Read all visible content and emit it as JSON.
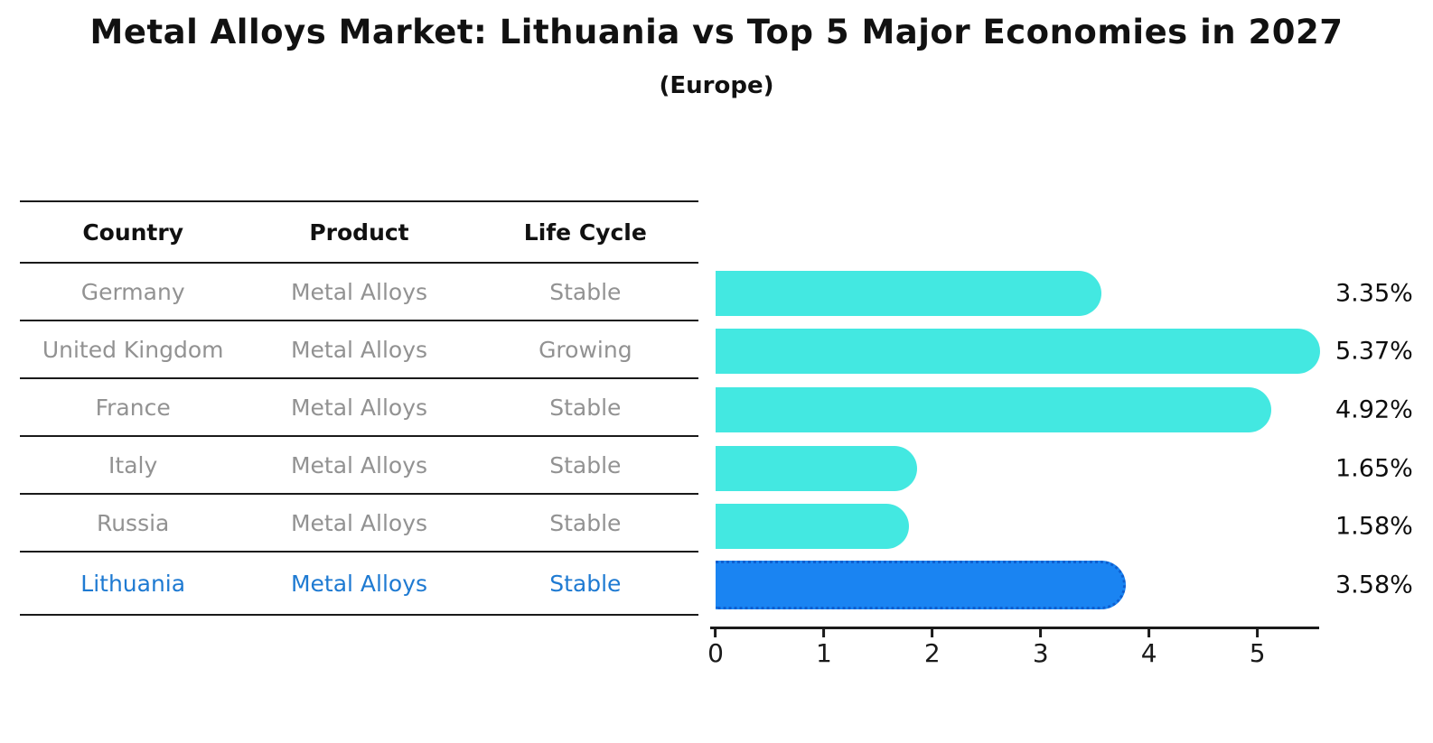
{
  "title": "Metal Alloys Market: Lithuania vs Top 5 Major Economies in 2027",
  "subtitle": "(Europe)",
  "table": {
    "headers": [
      "Country",
      "Product",
      "Life Cycle"
    ],
    "rows": [
      {
        "country": "Germany",
        "product": "Metal Alloys",
        "life_cycle": "Stable"
      },
      {
        "country": "United Kingdom",
        "product": "Metal Alloys",
        "life_cycle": "Growing"
      },
      {
        "country": "France",
        "product": "Metal Alloys",
        "life_cycle": "Stable"
      },
      {
        "country": "Italy",
        "product": "Metal Alloys",
        "life_cycle": "Stable"
      },
      {
        "country": "Russia",
        "product": "Metal Alloys",
        "life_cycle": "Stable"
      },
      {
        "country": "Lithuania",
        "product": "Metal Alloys",
        "life_cycle": "Stable"
      }
    ]
  },
  "chart_data": {
    "type": "bar",
    "orientation": "horizontal",
    "title": "Metal Alloys Market: Lithuania vs Top 5 Major Economies in 2027",
    "subtitle": "(Europe)",
    "categories": [
      "Germany",
      "United Kingdom",
      "France",
      "Italy",
      "Russia",
      "Lithuania"
    ],
    "values": [
      3.35,
      5.37,
      4.92,
      1.65,
      1.58,
      3.58
    ],
    "value_labels": [
      "3.35%",
      "5.37%",
      "4.92%",
      "1.65%",
      "1.58%",
      "3.58%"
    ],
    "unit": "%",
    "xlim": [
      0,
      5.57
    ],
    "xticks": [
      0,
      1,
      2,
      3,
      4,
      5
    ],
    "xtick_labels": [
      "0",
      "1",
      "2",
      "3",
      "4",
      "5"
    ],
    "highlight_index": 5,
    "bar_colors": [
      "#43E8E1",
      "#43E8E1",
      "#43E8E1",
      "#43E8E1",
      "#43E8E1",
      "#1A84F2"
    ],
    "grid": false,
    "legend": false
  },
  "colors": {
    "bar_default": "#43E8E1",
    "bar_highlight": "#1A84F2",
    "bar_highlight_border": "#0E5FD0",
    "table_text": "#929292",
    "highlight_text": "#1E7AD2",
    "heading_text": "#111111",
    "line": "#1a1a1a"
  }
}
